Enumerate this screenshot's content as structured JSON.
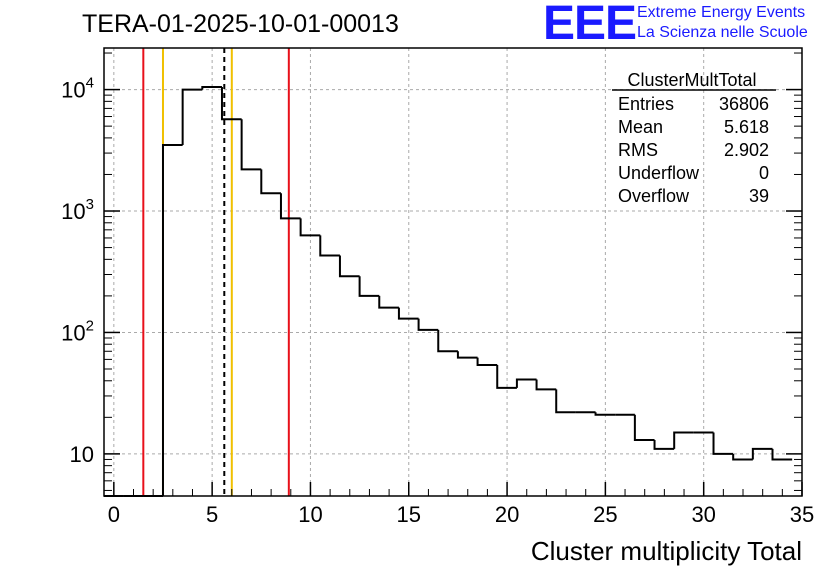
{
  "header": {
    "title": "TERA-01-2025-10-01-00013",
    "logo_mark": "EEE",
    "logo_line1": "Extreme Energy Events",
    "logo_line2": "La Scienza nelle Scuole"
  },
  "stats": {
    "name": "ClusterMultTotal",
    "rows": [
      {
        "label": "Entries",
        "value": "36806"
      },
      {
        "label": "Mean",
        "value": "5.618"
      },
      {
        "label": "RMS",
        "value": "2.902"
      },
      {
        "label": "Underflow",
        "value": "0"
      },
      {
        "label": "Overflow",
        "value": "39"
      }
    ]
  },
  "colors": {
    "histogram": "#000000",
    "red_marker": "#e8101a",
    "yellow_marker": "#f0c000",
    "mean_marker": "#000000",
    "grid": "#aaaaaa"
  },
  "chart_data": {
    "type": "bar",
    "xlabel": "Cluster multiplicity Total",
    "ylabel": "",
    "xlim": [
      -0.5,
      35
    ],
    "ylim": [
      4.5,
      22000
    ],
    "yscale": "log",
    "grid": true,
    "bin_width": 1,
    "bins_x_start": [
      -0.5,
      0.5,
      1.5,
      2.5,
      3.5,
      4.5,
      5.5,
      6.5,
      7.5,
      8.5,
      9.5,
      10.5,
      11.5,
      12.5,
      13.5,
      14.5,
      15.5,
      16.5,
      17.5,
      18.5,
      19.5,
      20.5,
      21.5,
      22.5,
      23.5,
      24.5,
      25.5,
      26.5,
      27.5,
      28.5,
      29.5,
      30.5,
      31.5,
      32.5,
      33.5
    ],
    "values": [
      0,
      0,
      0,
      3500,
      10000,
      10500,
      5700,
      2200,
      1400,
      870,
      630,
      430,
      290,
      200,
      160,
      130,
      105,
      70,
      62,
      54,
      35,
      41,
      34,
      22,
      22,
      21,
      21,
      13,
      11,
      15,
      15,
      10,
      9,
      11,
      9
    ],
    "x_ticks": [
      0,
      5,
      10,
      15,
      20,
      25,
      30,
      35
    ],
    "x_tick_labels": [
      "0",
      "5",
      "10",
      "15",
      "20",
      "25",
      "30",
      "35"
    ],
    "y_ticks": [
      10,
      100,
      1000,
      10000
    ],
    "y_tick_base": "10",
    "y_tick_exponents": [
      "",
      "2",
      "3",
      "4"
    ],
    "vertical_lines": [
      {
        "x": 1.5,
        "color": "red"
      },
      {
        "x": 2.5,
        "color": "yellow"
      },
      {
        "x": 5.618,
        "color": "black",
        "style": "dashed"
      },
      {
        "x": 6.0,
        "color": "yellow"
      },
      {
        "x": 8.9,
        "color": "red"
      }
    ]
  }
}
